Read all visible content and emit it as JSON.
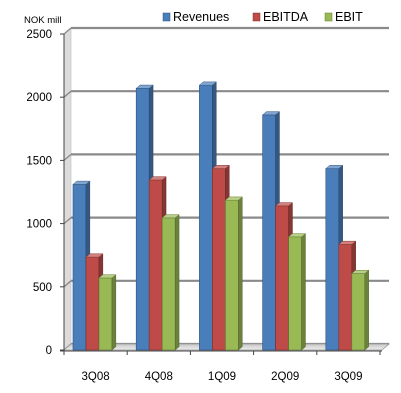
{
  "chart_data": {
    "type": "bar",
    "unit_label": "NOK mill",
    "categories": [
      "3Q08",
      "4Q08",
      "1Q09",
      "2Q09",
      "3Q09"
    ],
    "series": [
      {
        "name": "Revenues",
        "values": [
          1310,
          2070,
          2095,
          1860,
          1435
        ],
        "color": "#4a7ebb"
      },
      {
        "name": "EBITDA",
        "values": [
          735,
          1345,
          1435,
          1140,
          835
        ],
        "color": "#be4b48"
      },
      {
        "name": "EBIT",
        "values": [
          570,
          1045,
          1185,
          895,
          605
        ],
        "color": "#98b954"
      }
    ],
    "ylim": [
      0,
      2500
    ],
    "yticks": [
      "0",
      "500",
      "1000",
      "1500",
      "2000",
      "2500"
    ],
    "grid": true,
    "legend_position": "top-right"
  }
}
